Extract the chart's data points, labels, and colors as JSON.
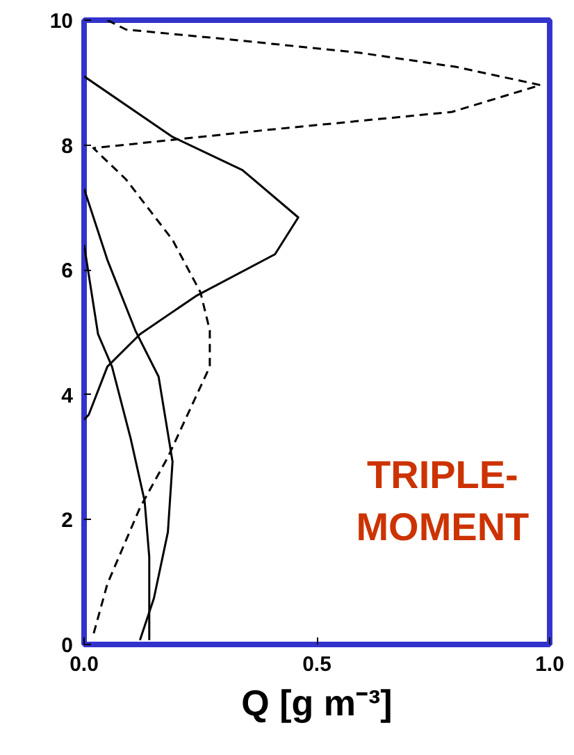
{
  "chart_data": {
    "type": "line",
    "xlabel": "Q [g m⁻³]",
    "xlim": [
      0,
      1
    ],
    "ylim": [
      0,
      10
    ],
    "xticks": [
      {
        "value": 0,
        "label": "0.0"
      },
      0.5,
      {
        "value": 1,
        "label": "1.0"
      }
    ],
    "yticks": [
      0,
      2,
      4,
      6,
      8,
      10
    ],
    "grid": false,
    "marker": "none",
    "annotations": [
      "TRIPLE-\nMOMENT"
    ],
    "series": [
      {
        "color": "#000000",
        "line_style": "dashed",
        "x": [
          0.05,
          0.09,
          0.3,
          0.59,
          0.8,
          0.98,
          0.79,
          0.39,
          0.02,
          0.09,
          0.19,
          0.25,
          0.27,
          0.27,
          0.18,
          0.12,
          0.05,
          0.02
        ],
        "values": [
          10,
          9.85,
          9.7,
          9.48,
          9.25,
          8.96,
          8.53,
          8.24,
          7.95,
          7.45,
          6.48,
          5.64,
          5.03,
          4.45,
          3.0,
          2.19,
          0.97,
          0.16
        ]
      },
      {
        "color": "#000000",
        "line_style": "solid",
        "x": [
          0.0,
          0.19,
          0.34,
          0.46,
          0.41,
          0.24,
          0.12,
          0.05,
          0.01,
          0.0
        ],
        "values": [
          9.1,
          8.13,
          7.6,
          6.84,
          6.25,
          5.58,
          4.97,
          4.45,
          3.68,
          3.6
        ]
      },
      {
        "color": "#000000",
        "line_style": "solid",
        "x": [
          0.0,
          0.05,
          0.11,
          0.16,
          0.19,
          0.18,
          0.15,
          0.12
        ],
        "values": [
          7.3,
          6.16,
          5.03,
          4.29,
          2.93,
          1.8,
          0.74,
          0.07
        ]
      },
      {
        "color": "#000000",
        "line_style": "solid",
        "x": [
          0.0,
          0.03,
          0.06,
          0.1,
          0.13,
          0.14,
          0.14
        ],
        "values": [
          6.4,
          4.97,
          4.45,
          3.3,
          2.3,
          1.4,
          0.07
        ]
      }
    ]
  }
}
